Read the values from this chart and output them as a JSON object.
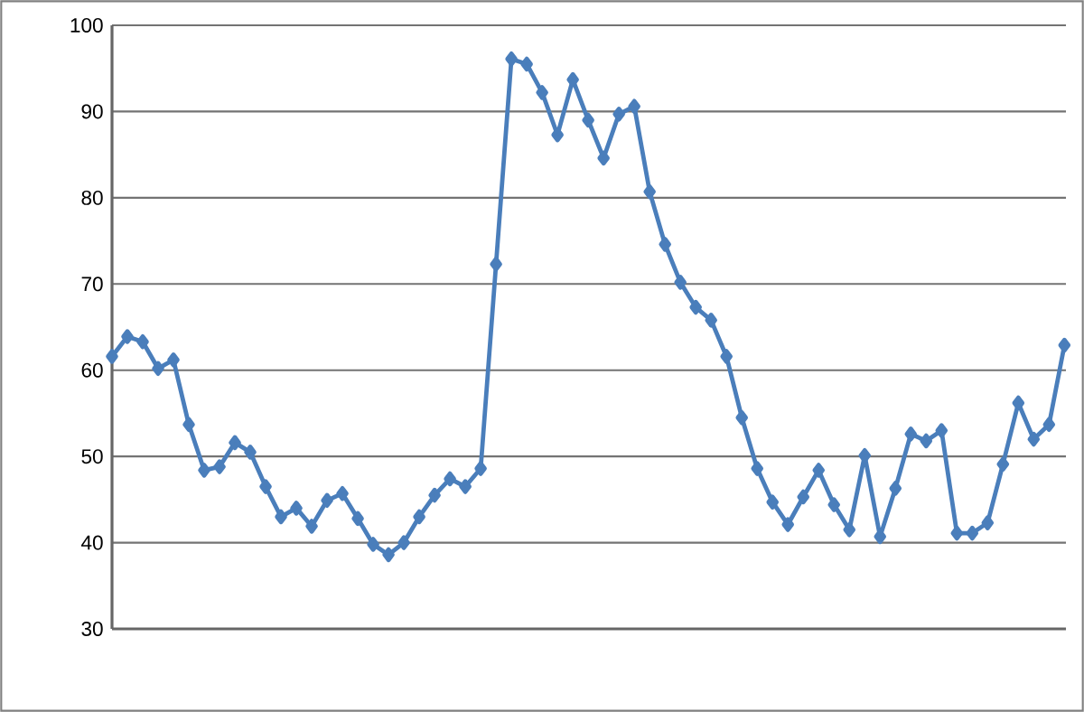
{
  "chart_data": {
    "type": "line",
    "categories": [
      null,
      null,
      null,
      null,
      null,
      null,
      null,
      null,
      null,
      null,
      null,
      null,
      null,
      null,
      null,
      null,
      null,
      null,
      null,
      null,
      null,
      null,
      null,
      null,
      null,
      null,
      null,
      null,
      null,
      null,
      null,
      null,
      null,
      null,
      null,
      null,
      null,
      null,
      null,
      null,
      null,
      null,
      null,
      null,
      null,
      null,
      null,
      null,
      null,
      null,
      null,
      null,
      null,
      null,
      null,
      null,
      null,
      null,
      null,
      null,
      null,
      null,
      null
    ],
    "series": [
      {
        "color": "#4a7ebb",
        "values": [
          61.6,
          63.9,
          63.3,
          60.2,
          61.2,
          53.7,
          48.4,
          48.8,
          51.6,
          50.5,
          46.5,
          43.0,
          44.0,
          41.9,
          44.9,
          45.7,
          42.8,
          39.8,
          38.6,
          40.0,
          43.0,
          45.5,
          47.4,
          46.5,
          48.6,
          72.3,
          96.1,
          95.5,
          92.2,
          87.3,
          93.7,
          89.0,
          84.6,
          89.7,
          90.6,
          80.7,
          74.6,
          70.2,
          67.3,
          65.8,
          61.6,
          54.5,
          48.6,
          44.7,
          42.1,
          45.3,
          48.4,
          44.4,
          41.5,
          50.1,
          40.7,
          46.3,
          52.6,
          51.8,
          53.0,
          41.1,
          41.1,
          42.3,
          49.1,
          56.2,
          52.0,
          53.7,
          62.9
        ]
      }
    ],
    "ylim": [
      30,
      100
    ],
    "yticks": [
      30,
      40,
      50,
      60,
      70,
      80,
      90,
      100
    ],
    "grid": "y",
    "marker": "diamond",
    "line_style": "solid",
    "tick_labels": "y"
  }
}
